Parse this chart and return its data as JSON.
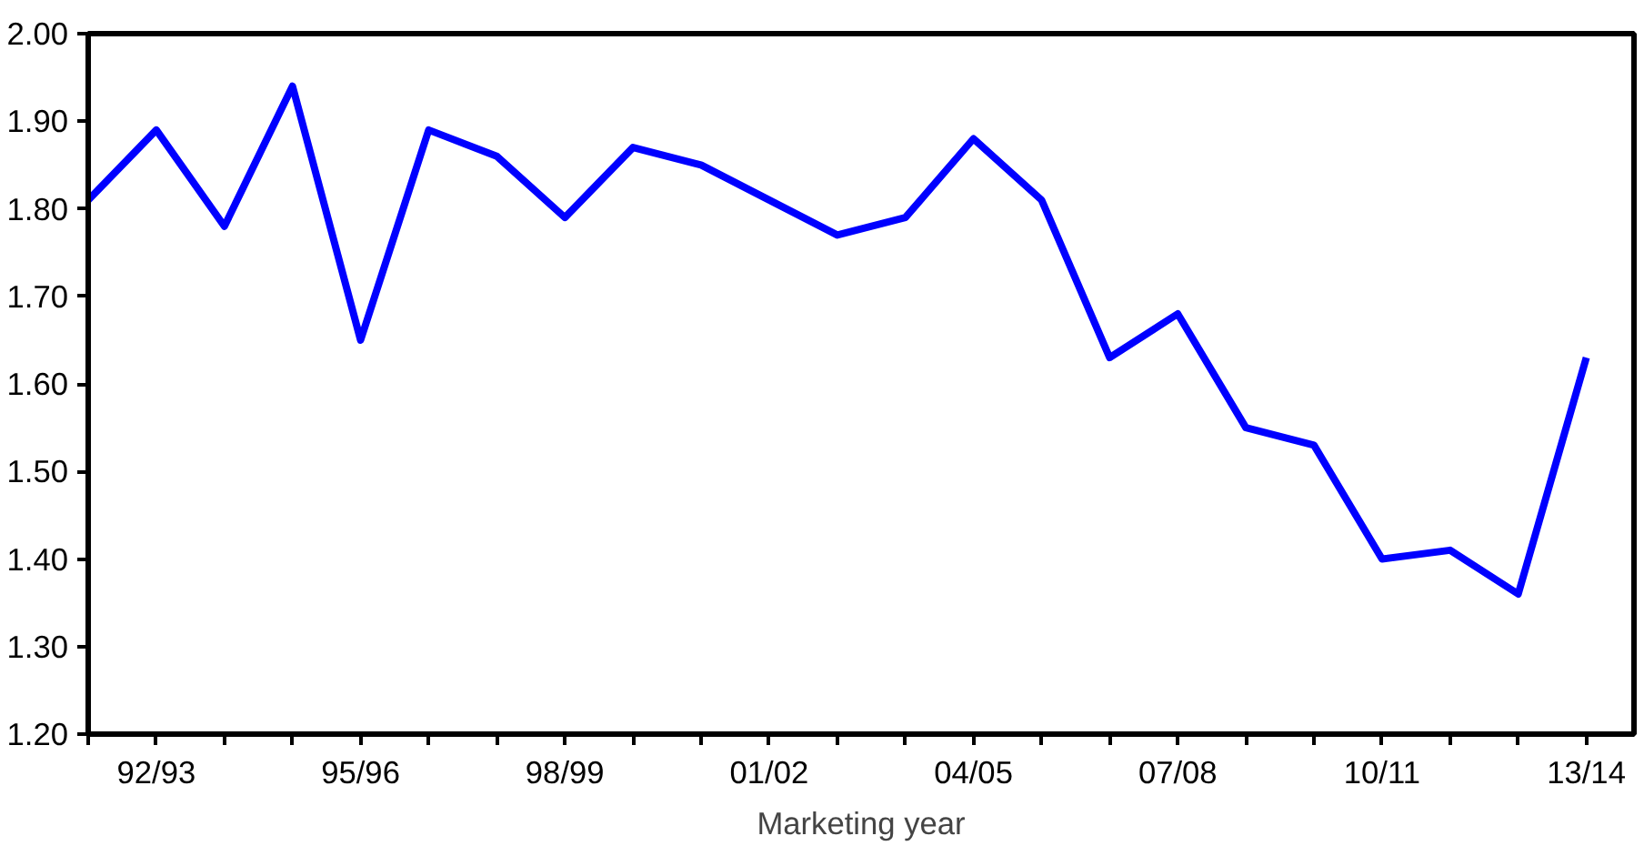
{
  "chart_data": {
    "type": "line",
    "xlabel": "Marketing year",
    "categories": [
      null,
      "92/93",
      null,
      null,
      "95/96",
      null,
      null,
      "98/99",
      null,
      null,
      "01/02",
      null,
      null,
      "04/05",
      null,
      null,
      "07/08",
      null,
      null,
      "10/11",
      null,
      null,
      "13/14"
    ],
    "series": [
      {
        "color": "#0000ff",
        "values": [
          1.81,
          1.89,
          1.78,
          1.94,
          1.65,
          1.89,
          1.86,
          1.79,
          1.87,
          1.85,
          1.81,
          1.77,
          1.79,
          1.88,
          1.81,
          1.63,
          1.68,
          1.55,
          1.53,
          1.4,
          1.41,
          1.36,
          1.63
        ]
      }
    ],
    "ylim": [
      1.2,
      2.0
    ],
    "yticks": [
      {
        "value": 1.2,
        "label": "1.20"
      },
      {
        "value": 1.3,
        "label": "1.30"
      },
      {
        "value": 1.4,
        "label": "1.40"
      },
      {
        "value": 1.5,
        "label": "1.50"
      },
      {
        "value": 1.6,
        "label": "1.60"
      },
      {
        "value": 1.7,
        "label": "1.70"
      },
      {
        "value": 1.8,
        "label": "1.80"
      },
      {
        "value": 1.9,
        "label": "1.90"
      },
      {
        "value": 2.0,
        "label": "2.00"
      }
    ],
    "grid": false,
    "marker": "none",
    "line_style": "solid"
  }
}
